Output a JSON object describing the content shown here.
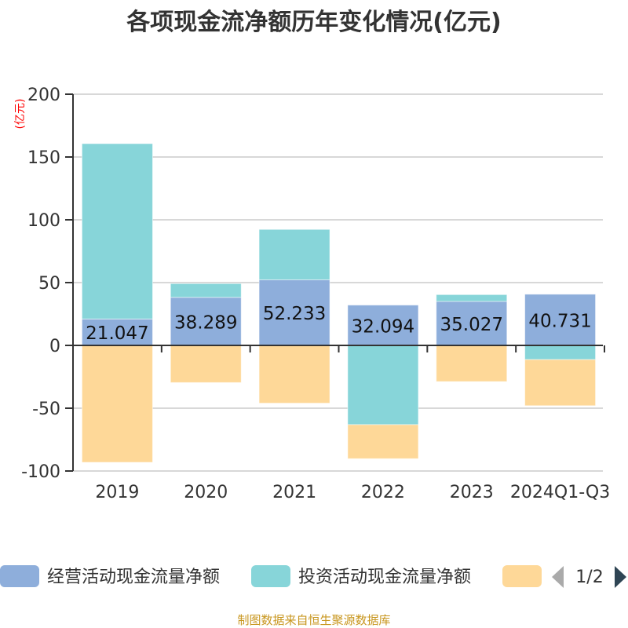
{
  "chart_data": {
    "type": "bar",
    "stacked": true,
    "title": "各项现金流净额历年变化情况(亿元)",
    "ylabel": "(亿元)",
    "ylim": [
      -100,
      200
    ],
    "yticks": [
      -100,
      -50,
      0,
      50,
      100,
      150,
      200
    ],
    "grid": true,
    "categories": [
      "2019",
      "2020",
      "2021",
      "2022",
      "2023",
      "2024Q1-Q3"
    ],
    "series": [
      {
        "name": "经营活动现金流量净额",
        "color": "#8eaedb",
        "values": [
          21.047,
          38.289,
          52.233,
          32.094,
          35.027,
          40.731
        ],
        "labels": [
          "21.047",
          "38.289",
          "52.233",
          "32.094",
          "35.027",
          "40.731"
        ]
      },
      {
        "name": "投资活动现金流量净额",
        "color": "#87d5d9",
        "values": [
          139.6,
          10.9,
          40.1,
          -63.1,
          5.4,
          -11.3
        ]
      },
      {
        "name": "",
        "color": "#fed898",
        "values": [
          -93.1,
          -29.6,
          -46.0,
          -27.1,
          -28.8,
          -36.7
        ]
      }
    ],
    "legend": {
      "position": "bottom",
      "page": "1/2"
    }
  },
  "source": "制图数据来自恒生聚源数据库"
}
